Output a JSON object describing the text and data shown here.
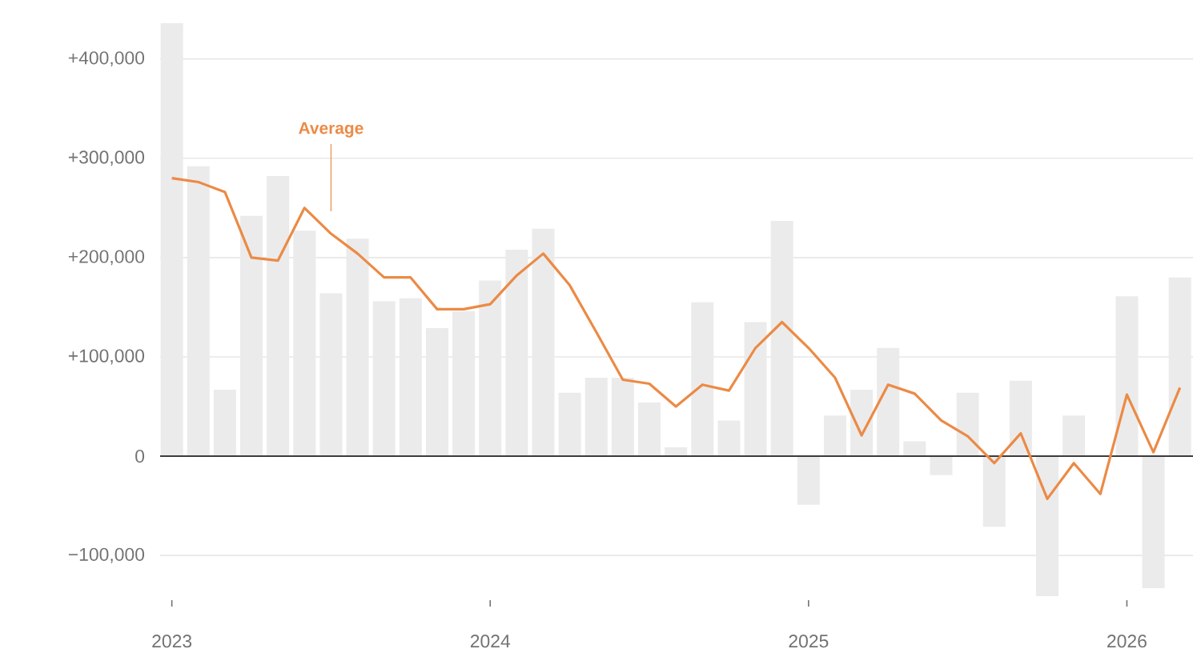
{
  "chart_data": {
    "type": "bar",
    "x": [
      "2023-01",
      "2023-02",
      "2023-03",
      "2023-04",
      "2023-05",
      "2023-06",
      "2023-07",
      "2023-08",
      "2023-09",
      "2023-10",
      "2023-11",
      "2023-12",
      "2024-01",
      "2024-02",
      "2024-03",
      "2024-04",
      "2024-05",
      "2024-06",
      "2024-07",
      "2024-08",
      "2024-09",
      "2024-10",
      "2024-11",
      "2024-12",
      "2025-01",
      "2025-02",
      "2025-03",
      "2025-04",
      "2025-05",
      "2025-06",
      "2025-07",
      "2025-08",
      "2025-09",
      "2025-10",
      "2025-11",
      "2025-12",
      "2026-01",
      "2026-02",
      "2026-03"
    ],
    "series": [
      {
        "type": "bar",
        "color": "#ebebeb",
        "values": [
          436000,
          292000,
          67000,
          242000,
          282000,
          227000,
          164000,
          219000,
          156000,
          159000,
          129000,
          146000,
          177000,
          208000,
          229000,
          64000,
          79000,
          79000,
          54000,
          9000,
          155000,
          36000,
          135000,
          237000,
          -49000,
          41000,
          67000,
          109000,
          15000,
          -19000,
          64000,
          -71000,
          76000,
          -141000,
          41000,
          0,
          161000,
          -133000,
          180000
        ]
      },
      {
        "type": "line",
        "name": "Average",
        "color": "#ec8a45",
        "line_style": "solid",
        "values": [
          280000,
          276000,
          266000,
          200000,
          197000,
          250000,
          224000,
          204000,
          180000,
          180000,
          148000,
          148000,
          153000,
          182000,
          204000,
          172000,
          125000,
          77000,
          73000,
          50000,
          72000,
          66000,
          109000,
          135000,
          109000,
          79000,
          21000,
          72000,
          63000,
          36000,
          20000,
          -7000,
          23000,
          -43000,
          -7000,
          -38000,
          62000,
          4000,
          69000
        ]
      }
    ],
    "xlim": [
      "2022-12-18",
      "2026-03-16"
    ],
    "xticks": [
      "2023",
      "2024",
      "2025",
      "2026"
    ],
    "ylim": [
      -145000,
      440000
    ],
    "yticks": [
      {
        "value": -100000,
        "label": "−100,000"
      },
      0,
      {
        "value": 100000,
        "label": "+100,000"
      },
      {
        "value": 200000,
        "label": "+200,000"
      },
      {
        "value": 300000,
        "label": "+300,000"
      },
      {
        "value": 400000,
        "label": "+400,000"
      }
    ],
    "grid": "y",
    "marker": "none"
  }
}
